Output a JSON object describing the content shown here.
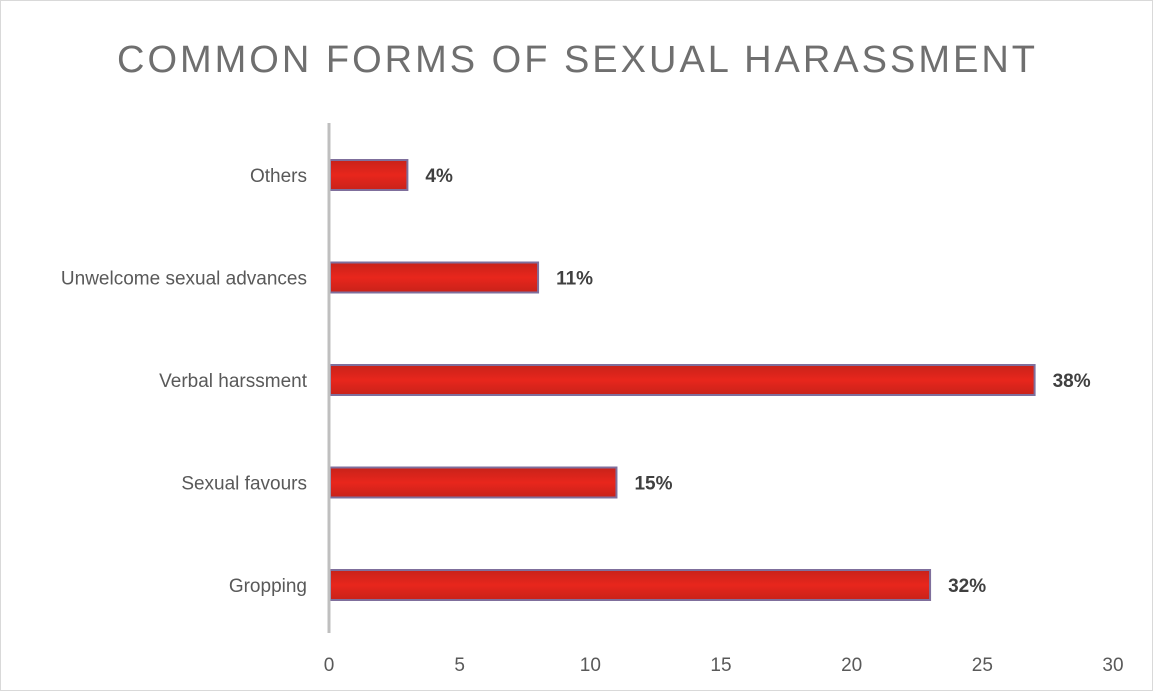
{
  "chart_data": {
    "type": "bar",
    "orientation": "horizontal",
    "title": "COMMON FORMS OF SEXUAL HARASSMENT",
    "categories": [
      "Others",
      "Unwelcome sexual advances",
      "Verbal harssment",
      "Sexual favours",
      "Gropping"
    ],
    "values": [
      3,
      8,
      27,
      11,
      23
    ],
    "data_labels": [
      "4%",
      "11%",
      "38%",
      "15%",
      "32%"
    ],
    "xlim": [
      0,
      30
    ],
    "xticks": [
      0,
      5,
      10,
      15,
      20,
      25,
      30
    ],
    "grid": false,
    "legend": "none",
    "colors": {
      "bar_fill": "#e2231a",
      "bar_fill_dark": "#c21a12",
      "bar_border": "#7f6f9c",
      "axis": "#bfbfbf",
      "title": "#6f6f6f",
      "label": "#595959",
      "data_label": "#404040"
    }
  }
}
